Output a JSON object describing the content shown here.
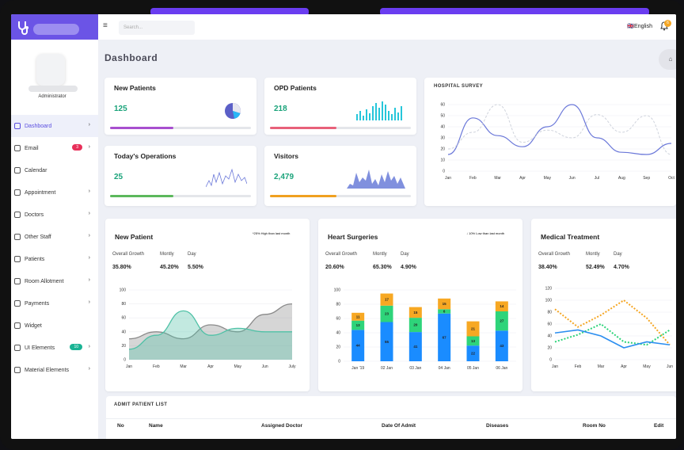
{
  "sidebar": {
    "role": "Administrator",
    "items": [
      {
        "label": "Dashboard",
        "chevron": "›",
        "active": true
      },
      {
        "label": "Email",
        "badge": "3",
        "badge_color": "#e8305a",
        "chevron": "›"
      },
      {
        "label": "Calendar"
      },
      {
        "label": "Appointment",
        "chevron": "›"
      },
      {
        "label": "Doctors",
        "chevron": "›"
      },
      {
        "label": "Other Staff",
        "chevron": "›"
      },
      {
        "label": "Patients",
        "chevron": "›"
      },
      {
        "label": "Room Allotment",
        "chevron": "›"
      },
      {
        "label": "Payments",
        "chevron": "›"
      },
      {
        "label": "Widget"
      },
      {
        "label": "UI Elements",
        "badge": "10",
        "badge_color": "#1ab394",
        "chevron": "›"
      },
      {
        "label": "Material Elements",
        "chevron": "›"
      }
    ]
  },
  "topbar": {
    "menu_icon": "≡",
    "search_placeholder": "Search...",
    "language": "English",
    "flag": "🇬🇧",
    "notification_count": "6"
  },
  "page_title": "Dashboard",
  "home_icon": "⌂",
  "stat_cards": [
    {
      "title": "New Patients",
      "value": "125",
      "progress": 0.45,
      "color": "#a84fcf"
    },
    {
      "title": "OPD Patients",
      "value": "218",
      "progress": 0.47,
      "color": "#e8617a"
    },
    {
      "title": "Today's Operations",
      "value": "25",
      "progress": 0.45,
      "color": "#5cb85c"
    },
    {
      "title": "Visitors",
      "value": "2,479",
      "progress": 0.47,
      "color": "#f0a020"
    }
  ],
  "hospital_survey": {
    "title": "HOSPITAL SURVEY"
  },
  "panels": [
    {
      "title": "New Patient",
      "trend": "*25% High than last month",
      "trend_color": "#1ab394",
      "labels": [
        "Overall Growth",
        "Montly",
        "Day"
      ],
      "values": [
        "35.80%",
        "45.20%",
        "5.50%"
      ]
    },
    {
      "title": "Heart Surgeries",
      "trend": "↓ 10% Low than last month",
      "trend_color": "#e8305a",
      "labels": [
        "Overall Growth",
        "Montly",
        "Day"
      ],
      "values": [
        "20.60%",
        "65.30%",
        "4.90%"
      ]
    },
    {
      "title": "Medical Treatment",
      "labels": [
        "Overall Growth",
        "Montly",
        "Day"
      ],
      "values": [
        "38.40%",
        "52.49%",
        "4.70%"
      ]
    }
  ],
  "admit_list": {
    "title": "ADMIT PATIENT LIST",
    "columns": [
      "No",
      "Name",
      "Assigned Doctor",
      "Date Of Admit",
      "Diseases",
      "Room No",
      "Edit"
    ]
  },
  "chart_data": [
    {
      "type": "line",
      "categories": [
        "Jan",
        "Feb",
        "Mar",
        "Apr",
        "May",
        "Jun",
        "Jul",
        "Aug",
        "Sep",
        "Oct"
      ],
      "ylim": [
        0,
        60
      ],
      "yticks": [
        0,
        10,
        20,
        30,
        40,
        50,
        60
      ],
      "series": [
        {
          "values": [
            15,
            48,
            32,
            22,
            40,
            60,
            30,
            17,
            15,
            25
          ],
          "color": "#6b78d9",
          "dashed": false
        },
        {
          "values": [
            20,
            35,
            60,
            26,
            37,
            30,
            51,
            35,
            50,
            15
          ],
          "color": "#cfd3dc",
          "dashed": true
        }
      ]
    },
    {
      "type": "area",
      "categories": [
        "Jan",
        "Feb",
        "Mar",
        "Apr",
        "May",
        "Jun",
        "July"
      ],
      "ylim": [
        0,
        100
      ],
      "yticks": [
        0,
        20,
        40,
        60,
        80,
        100
      ],
      "series": [
        {
          "values": [
            30,
            40,
            30,
            50,
            40,
            65,
            80
          ],
          "color": "#8a8a8a"
        },
        {
          "values": [
            15,
            35,
            70,
            35,
            45,
            40,
            40
          ],
          "color": "#4fc1a6"
        }
      ]
    },
    {
      "type": "bar",
      "categories": [
        "Jan '19",
        "02 Jan",
        "03 Jan",
        "04 Jan",
        "05 Jan",
        "06 Jan"
      ],
      "ylim": [
        0,
        100
      ],
      "yticks": [
        0,
        20,
        40,
        60,
        80,
        100
      ],
      "series": [
        {
          "values": [
            44,
            55,
            41,
            67,
            22,
            43
          ],
          "color": "#1a8cff"
        },
        {
          "values": [
            13,
            23,
            20,
            6,
            13,
            27
          ],
          "color": "#2ed47a"
        },
        {
          "values": [
            11,
            17,
            15,
            15,
            21,
            14
          ],
          "color": "#f7a823"
        }
      ]
    },
    {
      "type": "line",
      "categories": [
        "Jan",
        "Feb",
        "Mar",
        "Apr",
        "May",
        "Jun"
      ],
      "ylim": [
        0,
        120
      ],
      "yticks": [
        0,
        20,
        40,
        60,
        80,
        100,
        120
      ],
      "series": [
        {
          "values": [
            85,
            55,
            75,
            100,
            70,
            25
          ],
          "color": "#f5a623",
          "dashed": true
        },
        {
          "values": [
            30,
            42,
            60,
            30,
            25,
            50
          ],
          "color": "#2ed47a",
          "dashed": true
        },
        {
          "values": [
            45,
            50,
            40,
            20,
            30,
            25
          ],
          "color": "#2b8ef0",
          "dashed": false
        }
      ]
    }
  ]
}
